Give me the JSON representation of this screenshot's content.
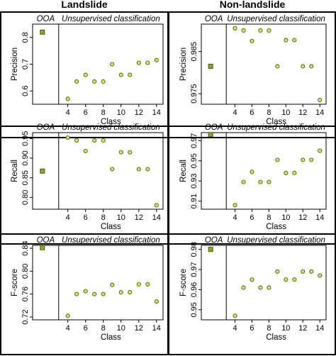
{
  "column_titles": [
    "Landslide",
    "Non-landslide"
  ],
  "chart_data": [
    {
      "type": "scatter",
      "column": "Landslide",
      "xlabel": "Class",
      "ylabel": "Precision",
      "ylim": [
        0.55,
        0.85
      ],
      "yticks": [
        "0.6",
        "0.7",
        "0.8"
      ],
      "ytick_values": [
        0.6,
        0.7,
        0.8
      ],
      "xticks": [
        "4",
        "6",
        "8",
        "10",
        "12",
        "14"
      ],
      "xtick_values": [
        4,
        6,
        8,
        10,
        12,
        14
      ],
      "left_label": "OOA",
      "right_label": "Unsupervised classification",
      "ooa_value": 0.82,
      "x": [
        4,
        5,
        6,
        7,
        8,
        9,
        10,
        11,
        12,
        13,
        14
      ],
      "y": [
        0.57,
        0.635,
        0.66,
        0.635,
        0.635,
        0.7,
        0.66,
        0.66,
        0.705,
        0.705,
        0.715
      ]
    },
    {
      "type": "scatter",
      "column": "Non-landslide",
      "xlabel": "Class",
      "ylabel": "Precision",
      "ylim": [
        0.9725,
        0.9915
      ],
      "yticks": [
        "0.975",
        "0.985"
      ],
      "ytick_values": [
        0.975,
        0.985
      ],
      "xticks": [
        "4",
        "6",
        "8",
        "10",
        "12",
        "14"
      ],
      "xtick_values": [
        4,
        6,
        8,
        10,
        12,
        14
      ],
      "left_label": "OOA",
      "right_label": "Unsupervised classification",
      "ooa_value": 0.9815,
      "x": [
        4,
        5,
        6,
        7,
        8,
        9,
        10,
        11,
        12,
        13,
        14
      ],
      "y": [
        0.9905,
        0.99,
        0.9875,
        0.99,
        0.99,
        0.9815,
        0.9877,
        0.9877,
        0.9815,
        0.9815,
        0.9735
      ]
    },
    {
      "type": "scatter",
      "column": "Landslide",
      "xlabel": "Class",
      "ylabel": "Recall",
      "ylim": [
        0.77,
        0.965
      ],
      "yticks": [
        "0.80",
        "0.85",
        "0.90",
        "0.95"
      ],
      "ytick_values": [
        0.8,
        0.85,
        0.9,
        0.95
      ],
      "xticks": [
        "4",
        "6",
        "8",
        "10",
        "12",
        "14"
      ],
      "xtick_values": [
        4,
        6,
        8,
        10,
        12,
        14
      ],
      "left_label": "OOA",
      "right_label": "Unsupervised classification",
      "ooa_value": 0.867,
      "x": [
        4,
        5,
        6,
        7,
        8,
        9,
        10,
        11,
        12,
        13,
        14
      ],
      "y": [
        0.952,
        0.945,
        0.918,
        0.945,
        0.945,
        0.872,
        0.915,
        0.915,
        0.872,
        0.872,
        0.78
      ]
    },
    {
      "type": "scatter",
      "column": "Non-landslide",
      "xlabel": "Class",
      "ylabel": "Recall",
      "ylim": [
        0.902,
        0.978
      ],
      "yticks": [
        "0.91",
        "0.93",
        "0.95",
        "0.97"
      ],
      "ytick_values": [
        0.91,
        0.93,
        0.95,
        0.97
      ],
      "xticks": [
        "4",
        "6",
        "8",
        "10",
        "12",
        "14"
      ],
      "xtick_values": [
        4,
        6,
        8,
        10,
        12,
        14
      ],
      "left_label": "OOA",
      "right_label": "Unsupervised classification",
      "ooa_value": 0.976,
      "x": [
        4,
        5,
        6,
        7,
        8,
        9,
        10,
        11,
        12,
        13,
        14
      ],
      "y": [
        0.906,
        0.929,
        0.939,
        0.929,
        0.929,
        0.951,
        0.938,
        0.938,
        0.951,
        0.951,
        0.96
      ]
    },
    {
      "type": "scatter",
      "column": "Landslide",
      "xlabel": "Class",
      "ylabel": "F-score",
      "ylim": [
        0.715,
        0.845
      ],
      "yticks": [
        "0.72",
        "0.76",
        "0.80",
        "0.84"
      ],
      "ytick_values": [
        0.72,
        0.76,
        0.8,
        0.84
      ],
      "xticks": [
        "4",
        "6",
        "8",
        "10",
        "12",
        "14"
      ],
      "xtick_values": [
        4,
        6,
        8,
        10,
        12,
        14
      ],
      "left_label": "OOA",
      "right_label": "Unsupervised classification",
      "ooa_value": 0.841,
      "x": [
        4,
        5,
        6,
        7,
        8,
        9,
        10,
        11,
        12,
        13,
        14
      ],
      "y": [
        0.722,
        0.76,
        0.765,
        0.76,
        0.76,
        0.776,
        0.763,
        0.763,
        0.777,
        0.777,
        0.747
      ]
    },
    {
      "type": "scatter",
      "column": "Non-landslide",
      "xlabel": "Class",
      "ylabel": "F-score",
      "ylim": [
        0.945,
        0.982
      ],
      "yticks": [
        "0.95",
        "0.96",
        "0.97",
        "0.98"
      ],
      "ytick_values": [
        0.95,
        0.96,
        0.97,
        0.98
      ],
      "xticks": [
        "4",
        "6",
        "8",
        "10",
        "12",
        "14"
      ],
      "xtick_values": [
        4,
        6,
        8,
        10,
        12,
        14
      ],
      "left_label": "OOA",
      "right_label": "Unsupervised classification",
      "ooa_value": 0.98,
      "x": [
        4,
        5,
        6,
        7,
        8,
        9,
        10,
        11,
        12,
        13,
        14
      ],
      "y": [
        0.947,
        0.961,
        0.965,
        0.961,
        0.961,
        0.969,
        0.965,
        0.965,
        0.969,
        0.969,
        0.967
      ]
    }
  ],
  "colors": {
    "marker_fill": "#d8e36a",
    "marker_stroke": "#4a5a10",
    "ooa_fill": "#8aa826",
    "frame": "#000000"
  }
}
